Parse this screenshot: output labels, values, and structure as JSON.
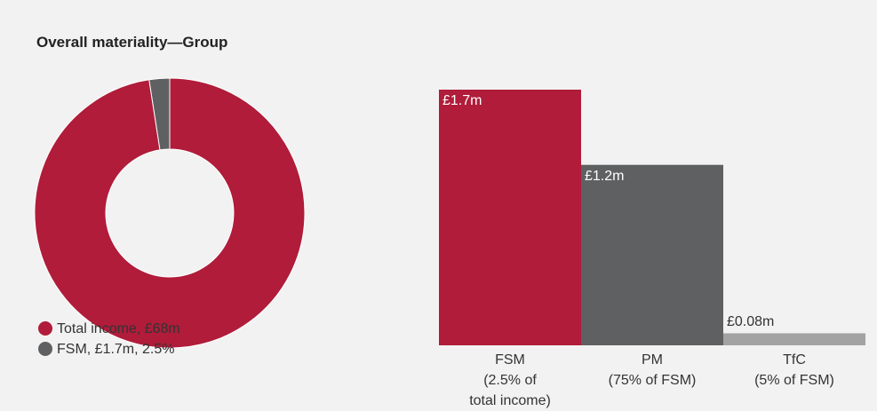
{
  "title": "Overall materiality—Group",
  "chart_data": [
    {
      "type": "donut",
      "categories": [
        "Total income, £68m",
        "FSM, £1.7m, 2.5%"
      ],
      "values": [
        68,
        1.7
      ],
      "colors": [
        "#b01c3a",
        "#5f6062"
      ]
    },
    {
      "type": "bar",
      "categories": [
        "FSM\n(2.5% of\ntotal income)",
        "PM\n(75% of FSM)",
        "TfC\n(5% of FSM)"
      ],
      "values": [
        1.7,
        1.2,
        0.08
      ],
      "value_labels": [
        "£1.7m",
        "£1.2m",
        "£0.08m"
      ],
      "colors": [
        "#b01c3a",
        "#5f6062",
        "#a3a3a3"
      ]
    }
  ]
}
